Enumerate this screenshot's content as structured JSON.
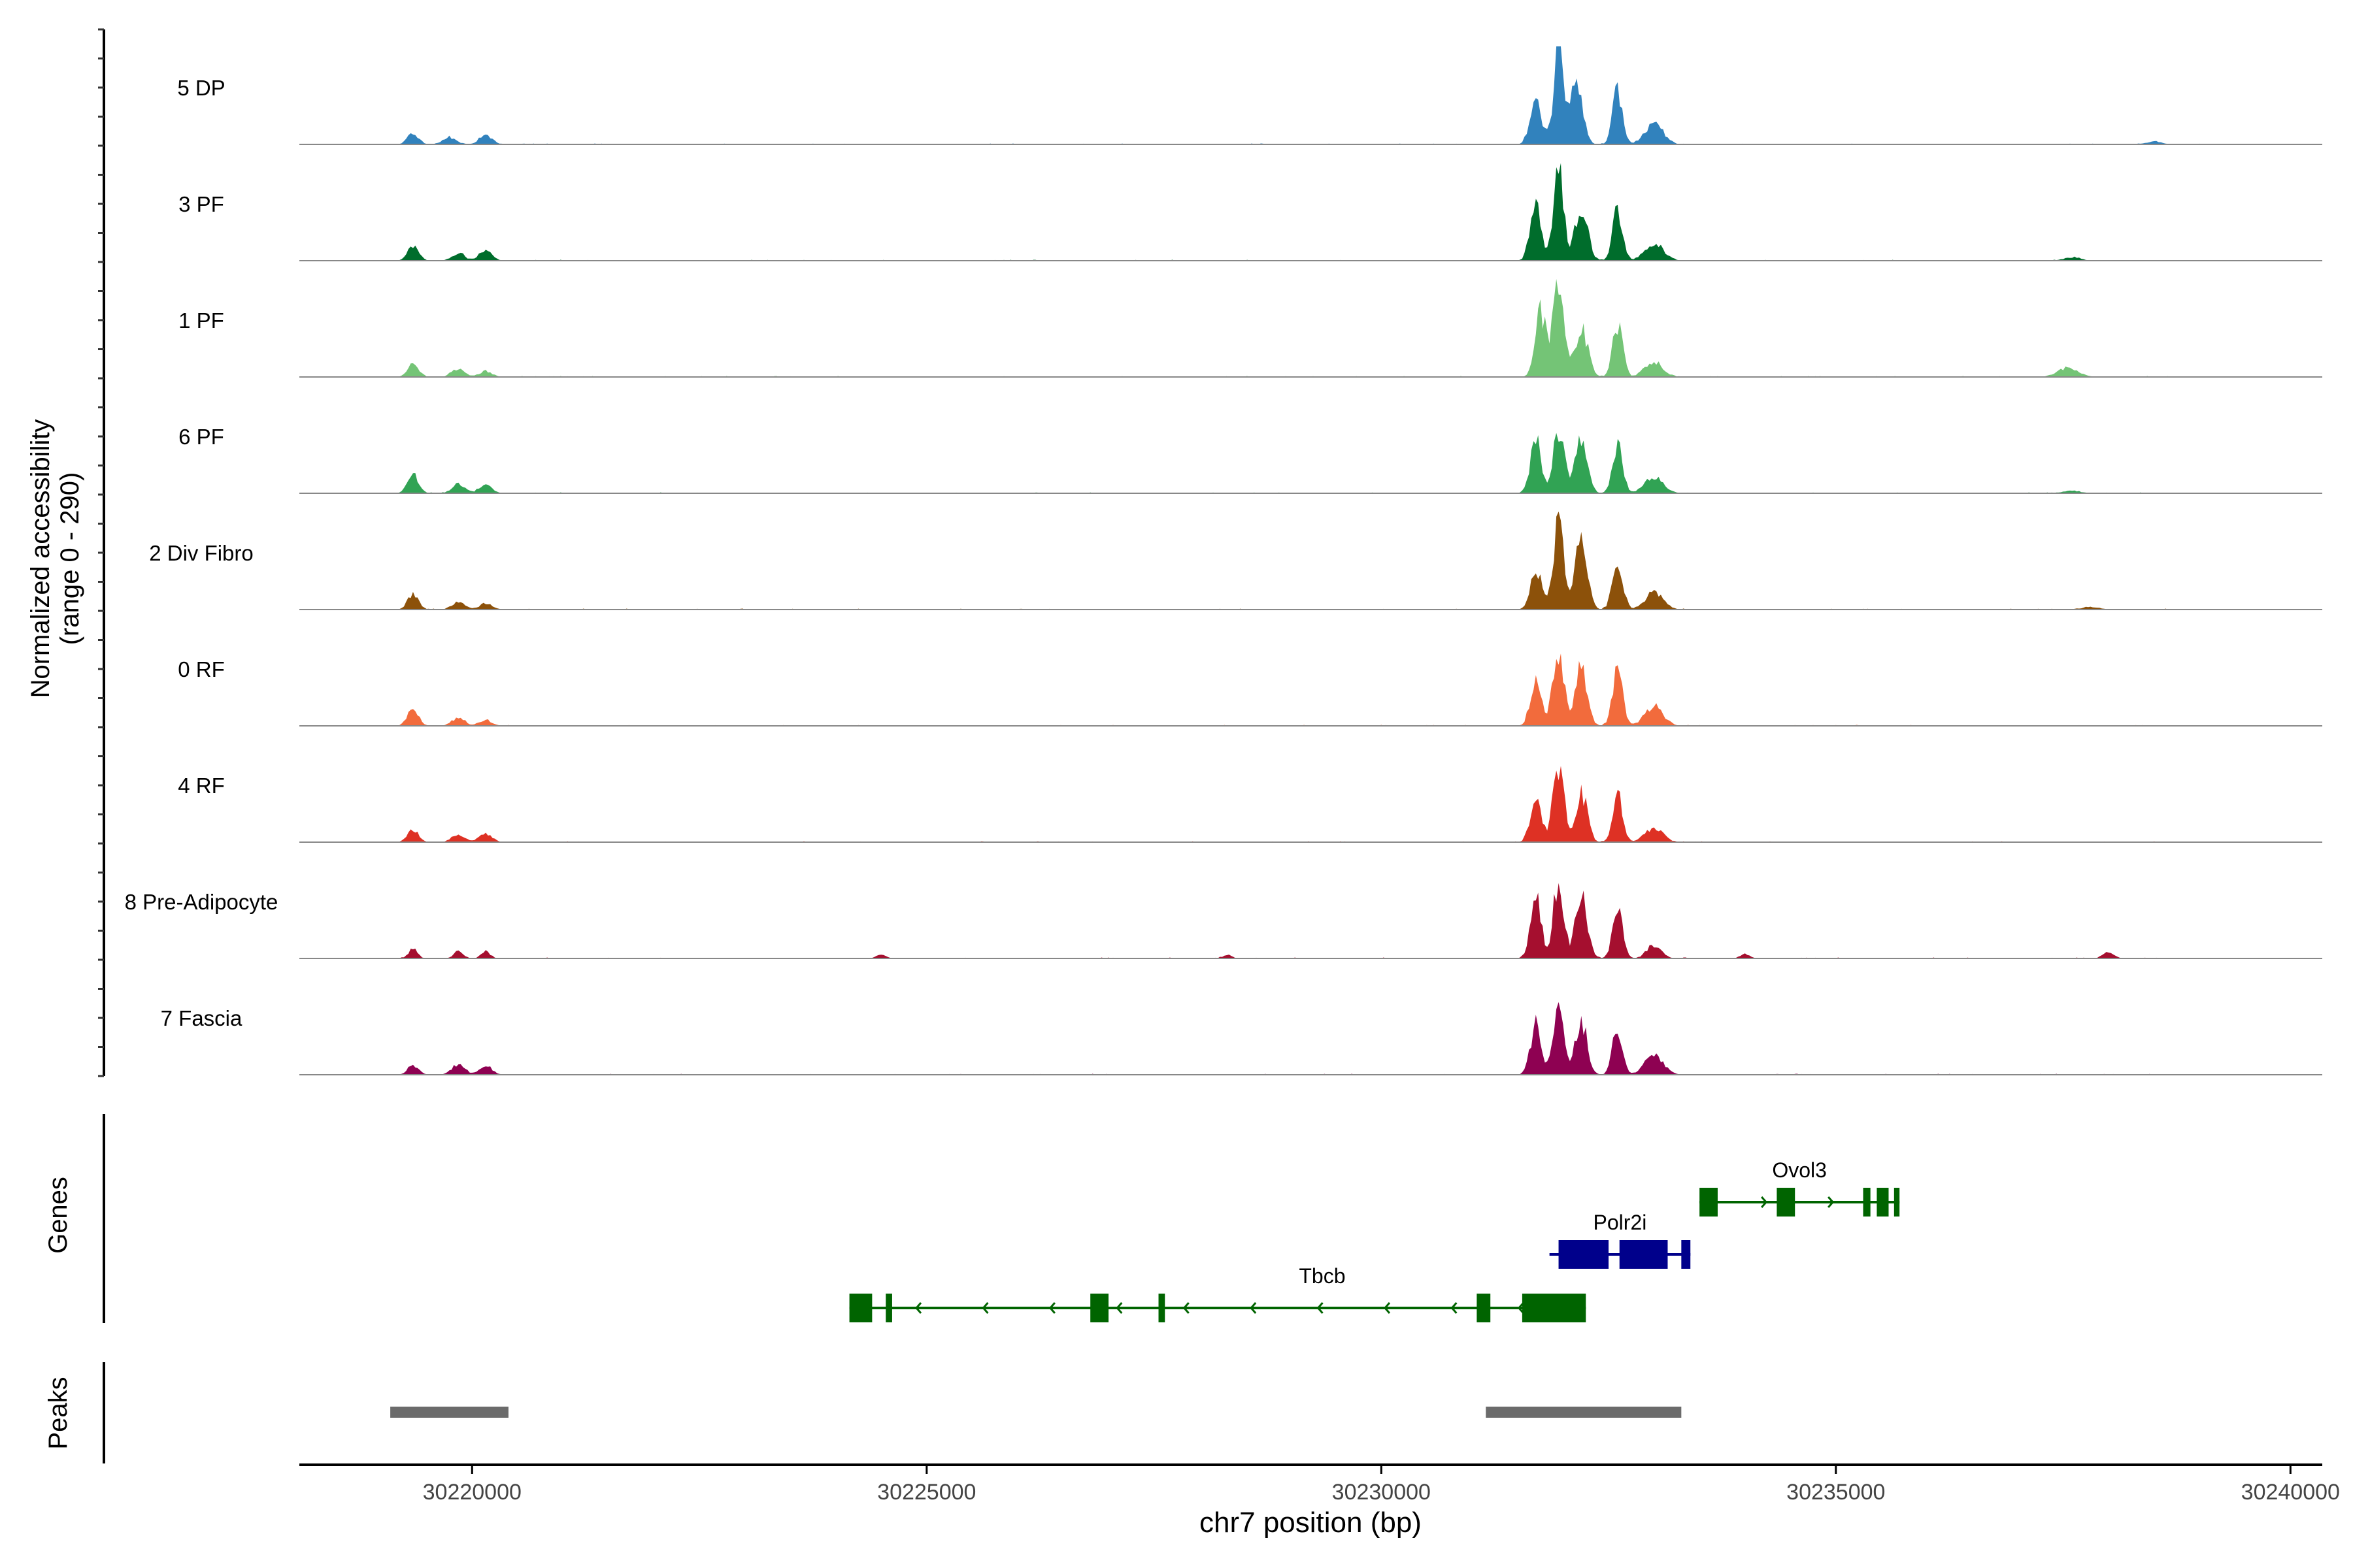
{
  "chart_data": {
    "type": "area",
    "title": "",
    "ylabel_line1": "Normalized accessibility",
    "ylabel_line2": "(range 0 - 290)",
    "xlabel": "chr7 position (bp)",
    "xlim": [
      30218100,
      30240350
    ],
    "xticks": [
      {
        "value": 30220000,
        "label": "30220000"
      },
      {
        "value": 30225000,
        "label": "30225000"
      },
      {
        "value": 30230000,
        "label": "30230000"
      },
      {
        "value": 30235000,
        "label": "30235000"
      },
      {
        "value": 30240000,
        "label": "30240000"
      }
    ],
    "ylim": [
      0,
      290
    ],
    "tracks": [
      {
        "name": "5 DP",
        "color": "#3182bd",
        "peaks": [
          [
            30219350,
            35,
            60
          ],
          [
            30219750,
            22,
            70
          ],
          [
            30220150,
            28,
            70
          ],
          [
            30231700,
            150,
            60
          ],
          [
            30231950,
            290,
            55
          ],
          [
            30232150,
            195,
            65
          ],
          [
            30232600,
            160,
            55
          ],
          [
            30233000,
            65,
            100
          ],
          [
            30238500,
            8,
            90
          ]
        ]
      },
      {
        "name": "3 PF",
        "color": "#006d2c",
        "peaks": [
          [
            30219350,
            45,
            60
          ],
          [
            30219850,
            22,
            70
          ],
          [
            30220150,
            28,
            70
          ],
          [
            30231700,
            170,
            60
          ],
          [
            30231950,
            270,
            55
          ],
          [
            30232200,
            160,
            70
          ],
          [
            30232600,
            150,
            55
          ],
          [
            30233000,
            55,
            100
          ],
          [
            30237600,
            10,
            90
          ]
        ]
      },
      {
        "name": "1 PF",
        "color": "#74c476",
        "peaks": [
          [
            30219350,
            40,
            60
          ],
          [
            30219850,
            25,
            70
          ],
          [
            30220150,
            18,
            70
          ],
          [
            30231750,
            200,
            60
          ],
          [
            30231950,
            280,
            60
          ],
          [
            30232200,
            150,
            70
          ],
          [
            30232600,
            155,
            55
          ],
          [
            30233000,
            45,
            100
          ],
          [
            30237550,
            28,
            110
          ]
        ]
      },
      {
        "name": "6 PF",
        "color": "#31a354",
        "peaks": [
          [
            30219350,
            55,
            60
          ],
          [
            30219850,
            28,
            70
          ],
          [
            30220150,
            25,
            70
          ],
          [
            30231700,
            160,
            60
          ],
          [
            30231950,
            200,
            60
          ],
          [
            30232200,
            165,
            65
          ],
          [
            30232600,
            140,
            55
          ],
          [
            30233000,
            50,
            100
          ],
          [
            30237600,
            8,
            90
          ]
        ]
      },
      {
        "name": "2 Div Fibro",
        "color": "#8c510a",
        "peaks": [
          [
            30219350,
            45,
            60
          ],
          [
            30219850,
            25,
            70
          ],
          [
            30220150,
            18,
            70
          ],
          [
            30231700,
            130,
            60
          ],
          [
            30231950,
            290,
            55
          ],
          [
            30232200,
            210,
            65
          ],
          [
            30232600,
            160,
            55
          ],
          [
            30233000,
            50,
            100
          ],
          [
            30237800,
            8,
            100
          ]
        ]
      },
      {
        "name": "0 RF",
        "color": "#f26b3c",
        "peaks": [
          [
            30219350,
            52,
            60
          ],
          [
            30219850,
            25,
            70
          ],
          [
            30220150,
            18,
            70
          ],
          [
            30231700,
            140,
            60
          ],
          [
            30231950,
            240,
            60
          ],
          [
            30232200,
            180,
            65
          ],
          [
            30232600,
            165,
            55
          ],
          [
            30233000,
            60,
            100
          ]
        ]
      },
      {
        "name": "4 RF",
        "color": "#de3124",
        "peaks": [
          [
            30219350,
            40,
            60
          ],
          [
            30219850,
            26,
            70
          ],
          [
            30220150,
            26,
            70
          ],
          [
            30231700,
            140,
            60
          ],
          [
            30231950,
            230,
            60
          ],
          [
            30232200,
            150,
            65
          ],
          [
            30232600,
            140,
            55
          ],
          [
            30233000,
            40,
            100
          ]
        ]
      },
      {
        "name": "8 Pre-Adipocyte",
        "color": "#a50f2f",
        "peaks": [
          [
            30219350,
            28,
            50
          ],
          [
            30219850,
            22,
            50
          ],
          [
            30220150,
            22,
            50
          ],
          [
            30224500,
            14,
            50
          ],
          [
            30228300,
            12,
            40
          ],
          [
            30231700,
            180,
            60
          ],
          [
            30231950,
            240,
            55
          ],
          [
            30232200,
            200,
            65
          ],
          [
            30232600,
            140,
            55
          ],
          [
            30233000,
            40,
            80
          ],
          [
            30234000,
            14,
            50
          ],
          [
            30238000,
            18,
            60
          ]
        ]
      },
      {
        "name": "7 Fascia",
        "color": "#8e0152",
        "peaks": [
          [
            30219350,
            28,
            60
          ],
          [
            30219850,
            32,
            70
          ],
          [
            30220150,
            28,
            70
          ],
          [
            30231700,
            150,
            60
          ],
          [
            30231950,
            190,
            60
          ],
          [
            30232200,
            160,
            65
          ],
          [
            30232600,
            140,
            55
          ],
          [
            30233000,
            60,
            100
          ]
        ]
      }
    ],
    "genes_label": "Genes",
    "genes": [
      {
        "name": "Ovol3",
        "color": "#006400",
        "start": 30233500,
        "end": 30235700,
        "strand": "+",
        "exons": [
          [
            30233500,
            30233700
          ],
          [
            30234350,
            30234550
          ],
          [
            30235300,
            30235380
          ],
          [
            30235450,
            30235580
          ],
          [
            30235640,
            30235700
          ]
        ]
      },
      {
        "name": "Polr2i",
        "color": "#00008b",
        "start": 30231850,
        "end": 30233400,
        "strand": "+",
        "exons": [
          [
            30231950,
            30232500
          ],
          [
            30232620,
            30233150
          ],
          [
            30233300,
            30233400
          ]
        ]
      },
      {
        "name": "Tbcb",
        "color": "#006400",
        "start": 30224150,
        "end": 30232250,
        "strand": "-",
        "exons": [
          [
            30224150,
            30224400
          ],
          [
            30224550,
            30224620
          ],
          [
            30226800,
            30227000
          ],
          [
            30227550,
            30227620
          ],
          [
            30231050,
            30231200
          ],
          [
            30231550,
            30232250
          ]
        ]
      }
    ],
    "peaks_label": "Peaks",
    "peak_regions": [
      [
        30219100,
        30220400
      ],
      [
        30231150,
        30233300
      ]
    ]
  }
}
